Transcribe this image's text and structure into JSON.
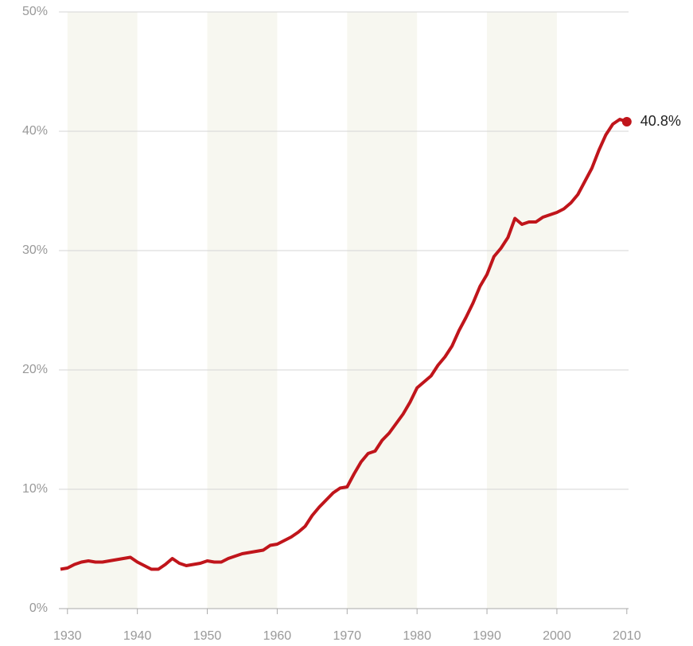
{
  "chart_data": {
    "type": "line",
    "x": [
      1929,
      1930,
      1931,
      1932,
      1933,
      1934,
      1935,
      1936,
      1937,
      1938,
      1939,
      1940,
      1941,
      1942,
      1943,
      1944,
      1945,
      1946,
      1947,
      1948,
      1949,
      1950,
      1951,
      1952,
      1953,
      1954,
      1955,
      1956,
      1957,
      1958,
      1959,
      1960,
      1961,
      1962,
      1963,
      1964,
      1965,
      1966,
      1967,
      1968,
      1969,
      1970,
      1971,
      1972,
      1973,
      1974,
      1975,
      1976,
      1977,
      1978,
      1979,
      1980,
      1981,
      1982,
      1983,
      1984,
      1985,
      1986,
      1987,
      1988,
      1989,
      1990,
      1991,
      1992,
      1993,
      1994,
      1995,
      1996,
      1997,
      1998,
      1999,
      2000,
      2001,
      2002,
      2003,
      2004,
      2005,
      2006,
      2007,
      2008,
      2009,
      2010
    ],
    "series": [
      {
        "color": "#c0151b",
        "values": [
          3.3,
          3.4,
          3.7,
          3.9,
          4.0,
          3.9,
          3.9,
          4.0,
          4.1,
          4.2,
          4.3,
          3.9,
          3.6,
          3.3,
          3.3,
          3.7,
          4.2,
          3.8,
          3.6,
          3.7,
          3.8,
          4.0,
          3.9,
          3.9,
          4.2,
          4.4,
          4.6,
          4.7,
          4.8,
          4.9,
          5.3,
          5.4,
          5.7,
          6.0,
          6.4,
          6.9,
          7.8,
          8.5,
          9.1,
          9.7,
          10.1,
          10.2,
          11.3,
          12.3,
          13.0,
          13.2,
          14.1,
          14.7,
          15.5,
          16.3,
          17.3,
          18.5,
          19.0,
          19.5,
          20.4,
          21.1,
          22.0,
          23.3,
          24.4,
          25.6,
          27.0,
          28.0,
          29.5,
          30.2,
          31.1,
          32.7,
          32.2,
          32.4,
          32.4,
          32.8,
          33.0,
          33.2,
          33.5,
          34.0,
          34.7,
          35.8,
          36.9,
          38.4,
          39.7,
          40.6,
          41.0,
          40.8
        ],
        "value_labels": [
          null,
          null,
          null,
          null,
          null,
          null,
          null,
          null,
          null,
          null,
          null,
          null,
          null,
          null,
          null,
          null,
          null,
          null,
          null,
          null,
          null,
          null,
          null,
          null,
          null,
          null,
          null,
          null,
          null,
          null,
          null,
          null,
          null,
          null,
          null,
          null,
          null,
          null,
          null,
          null,
          null,
          null,
          null,
          null,
          null,
          null,
          null,
          null,
          null,
          null,
          null,
          null,
          null,
          null,
          null,
          null,
          null,
          null,
          null,
          null,
          null,
          null,
          null,
          null,
          null,
          null,
          null,
          null,
          null,
          null,
          null,
          null,
          null,
          null,
          null,
          null,
          null,
          null,
          null,
          null,
          null,
          "40.8%"
        ]
      }
    ],
    "xlim": [
      1929,
      2010.25
    ],
    "xticks": [
      1930,
      1940,
      1950,
      1960,
      1970,
      1980,
      1990,
      2000,
      2010
    ],
    "ylim": [
      0,
      50
    ],
    "yticks": [
      {
        "value": 0,
        "label": "0%"
      },
      {
        "value": 10,
        "label": "10%"
      },
      {
        "value": 20,
        "label": "20%"
      },
      {
        "value": 30,
        "label": "30%"
      },
      {
        "value": 40,
        "label": "40%"
      },
      {
        "value": 50,
        "label": "50%"
      }
    ],
    "grid": true,
    "band_color": "#f7f7f0"
  }
}
